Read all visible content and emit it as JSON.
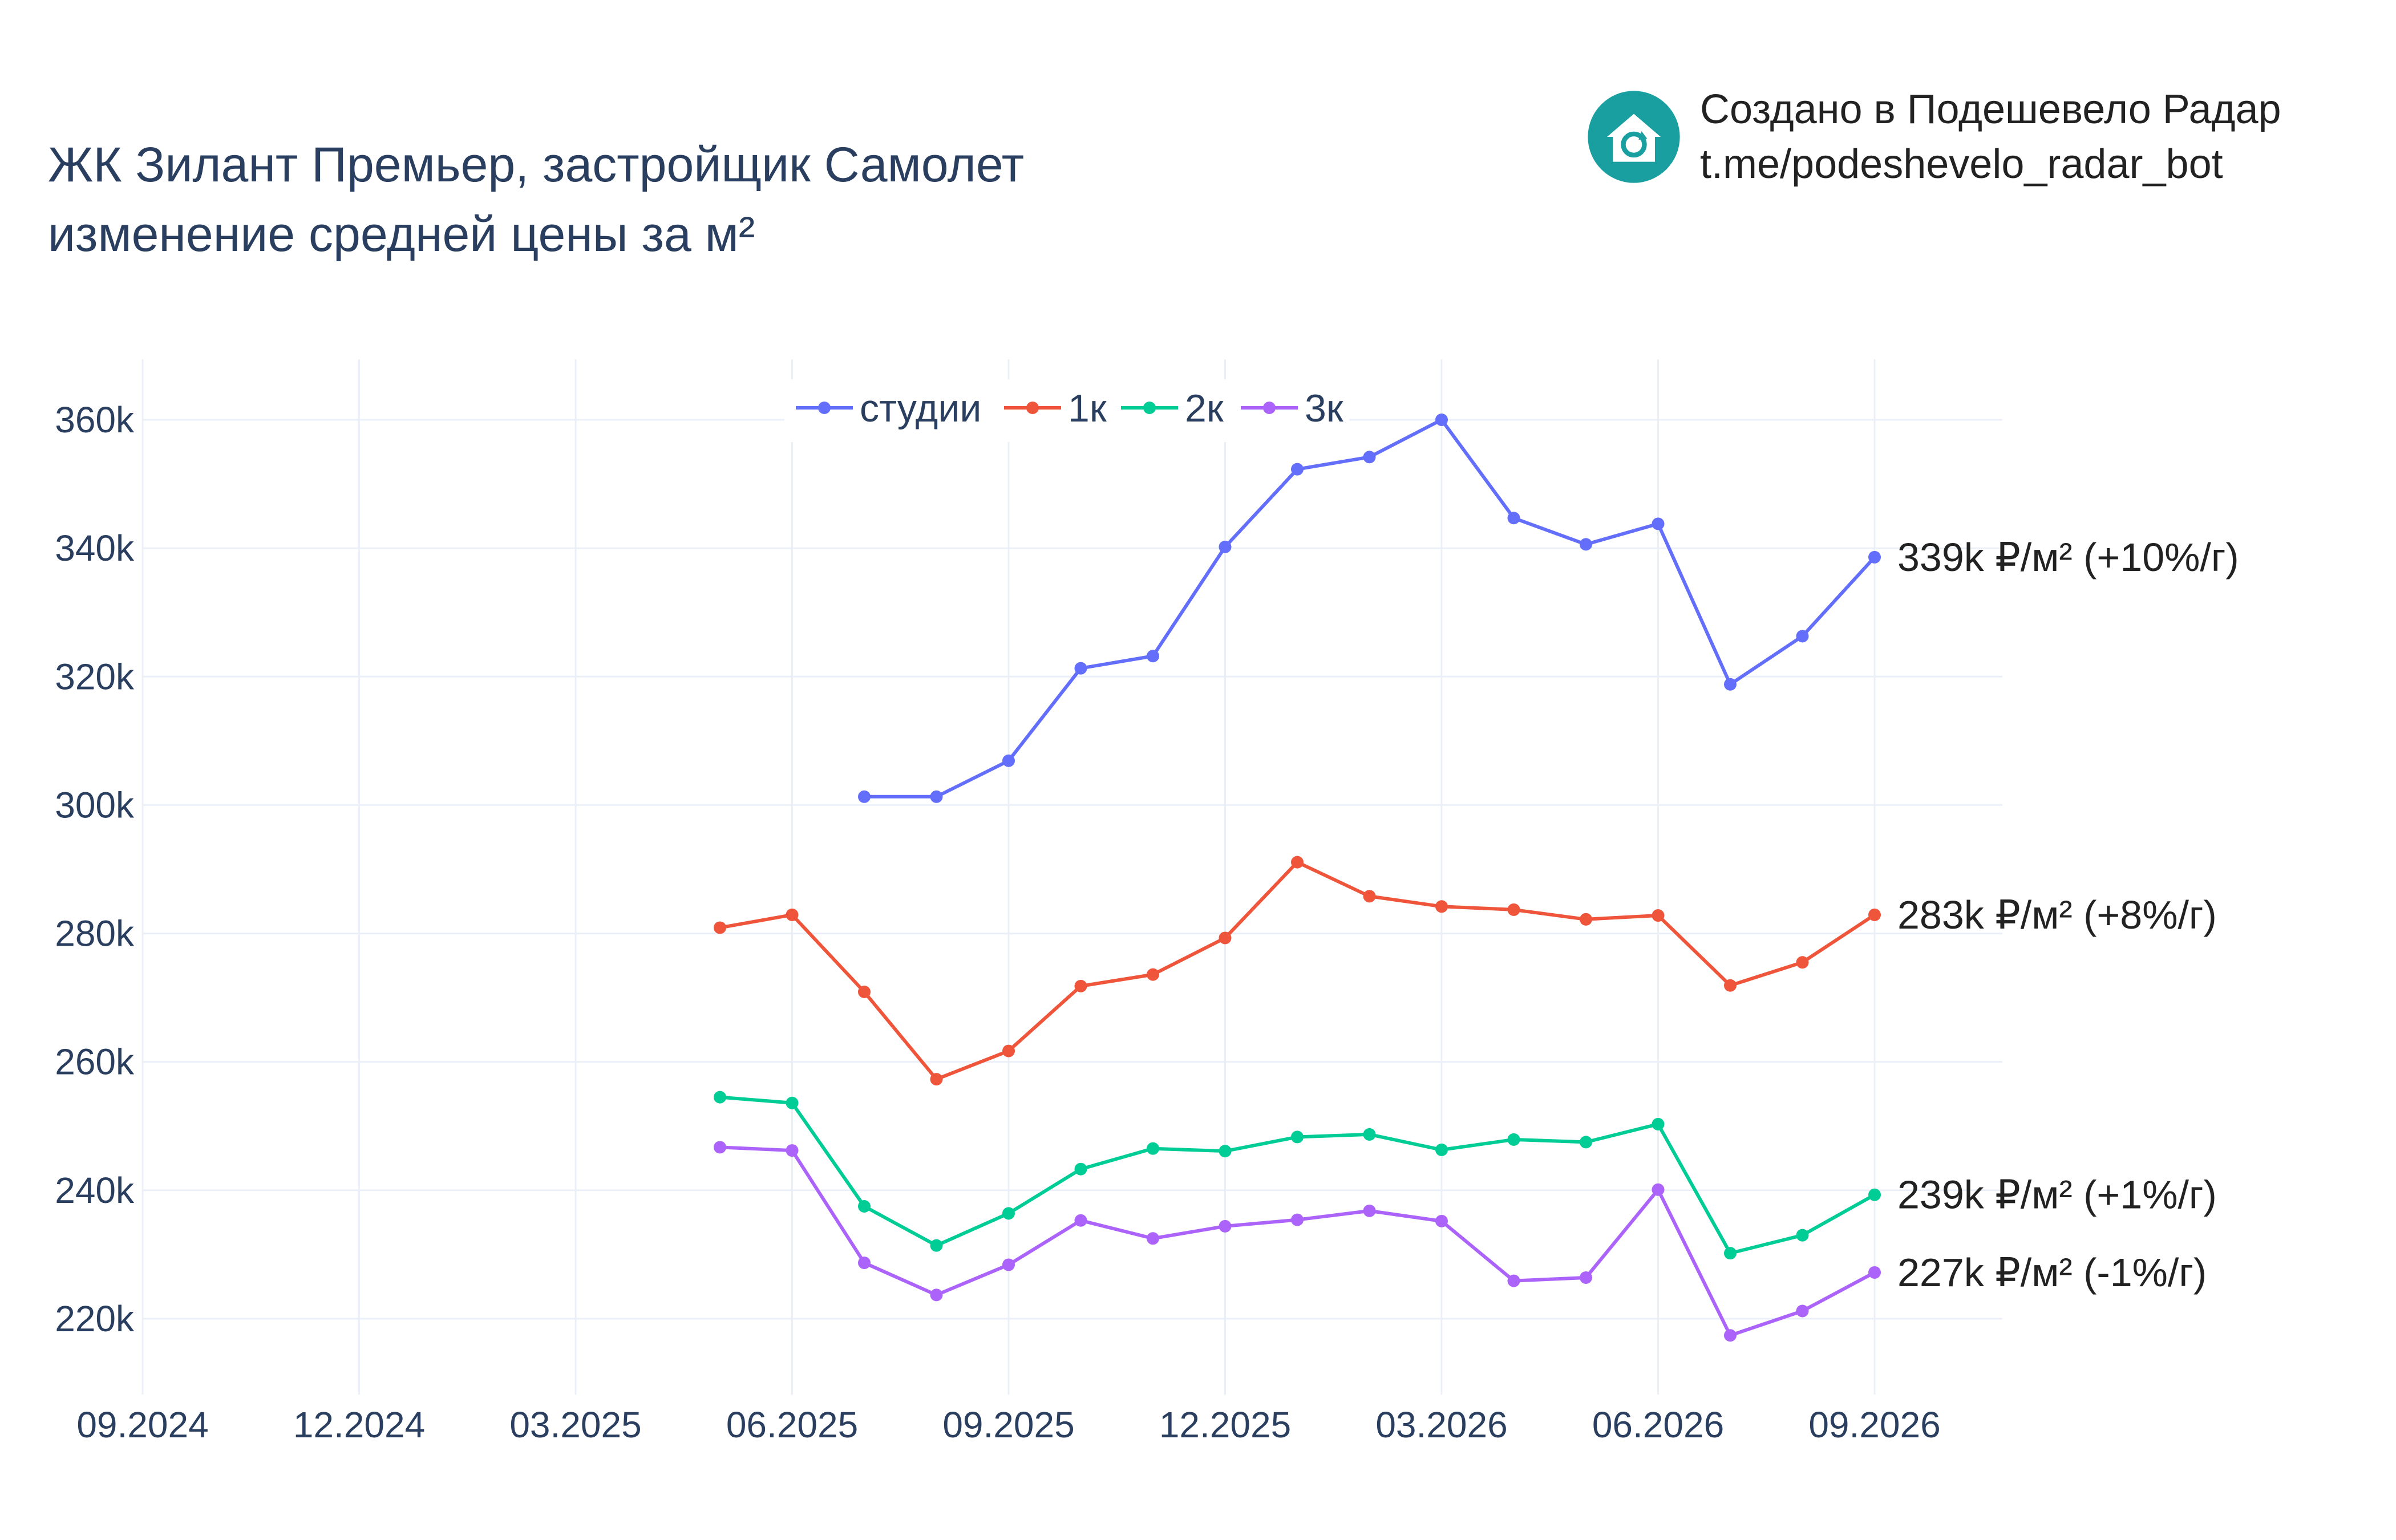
{
  "title": {
    "line1": "ЖК Зилант Премьер, застройщик Самолет",
    "line2": "изменение средней цены за м²"
  },
  "branding": {
    "line1": "Создано в Подешевело Радар",
    "line2": "t.me/podeshevelo_radar_bot",
    "logo_icon": "house-refresh-icon",
    "logo_color": "#1a9fa0"
  },
  "chart_data": {
    "type": "line",
    "x_ticks": [
      "09.2024",
      "12.2024",
      "03.2025",
      "06.2025",
      "09.2025",
      "12.2025",
      "03.2026",
      "06.2026",
      "09.2026"
    ],
    "y_ticks": [
      "220k",
      "240k",
      "260k",
      "280k",
      "300k",
      "320k",
      "340k",
      "360k"
    ],
    "y_tick_values": [
      220000,
      240000,
      260000,
      280000,
      300000,
      320000,
      340000,
      360000
    ],
    "ylim": [
      210000,
      368000
    ],
    "xlim": [
      "2024-09",
      "2026-11"
    ],
    "grid": true,
    "legend_position": "top-center",
    "series": [
      {
        "name": "студии",
        "color": "#636efa",
        "x": [
          "2025-07",
          "2025-08",
          "2025-09",
          "2025-10",
          "2025-11",
          "2025-12",
          "2026-01",
          "2026-02",
          "2026-03",
          "2026-04",
          "2026-05",
          "2026-06",
          "2026-07",
          "2026-08",
          "2026-09"
        ],
        "values": [
          301300,
          301300,
          306900,
          321300,
          323200,
          340200,
          352300,
          354200,
          360000,
          344700,
          340600,
          343800,
          318800,
          326300,
          338600
        ],
        "end_label": "339k ₽/м² (+10%/г)"
      },
      {
        "name": "1к",
        "color": "#ef553b",
        "x": [
          "2025-05",
          "2025-06",
          "2025-07",
          "2025-08",
          "2025-09",
          "2025-10",
          "2025-11",
          "2025-12",
          "2026-01",
          "2026-02",
          "2026-03",
          "2026-04",
          "2026-05",
          "2026-06",
          "2026-07",
          "2026-08",
          "2026-09"
        ],
        "values": [
          280900,
          282900,
          270900,
          257300,
          261700,
          271800,
          273600,
          279300,
          291100,
          285800,
          284200,
          283700,
          282200,
          282800,
          271900,
          275500,
          282900
        ],
        "end_label": "283k ₽/м² (+8%/г)"
      },
      {
        "name": "2к",
        "color": "#00cc96",
        "x": [
          "2025-05",
          "2025-06",
          "2025-07",
          "2025-08",
          "2025-09",
          "2025-10",
          "2025-11",
          "2025-12",
          "2026-01",
          "2026-02",
          "2026-03",
          "2026-04",
          "2026-05",
          "2026-06",
          "2026-07",
          "2026-08",
          "2026-09"
        ],
        "values": [
          254500,
          253600,
          237500,
          231400,
          236400,
          243300,
          246500,
          246100,
          248300,
          248700,
          246300,
          247900,
          247500,
          250300,
          230200,
          233000,
          239300
        ],
        "end_label": "239k ₽/м² (+1%/г)"
      },
      {
        "name": "3к",
        "color": "#ab63fa",
        "x": [
          "2025-05",
          "2025-06",
          "2025-07",
          "2025-08",
          "2025-09",
          "2025-10",
          "2025-11",
          "2025-12",
          "2026-01",
          "2026-02",
          "2026-03",
          "2026-04",
          "2026-05",
          "2026-06",
          "2026-07",
          "2026-08",
          "2026-09"
        ],
        "values": [
          246700,
          246200,
          228700,
          223700,
          228400,
          235300,
          232500,
          234400,
          235400,
          236800,
          235200,
          225900,
          226400,
          240100,
          217400,
          221200,
          227200
        ],
        "end_label": "227k ₽/м² (-1%/г)"
      }
    ]
  }
}
